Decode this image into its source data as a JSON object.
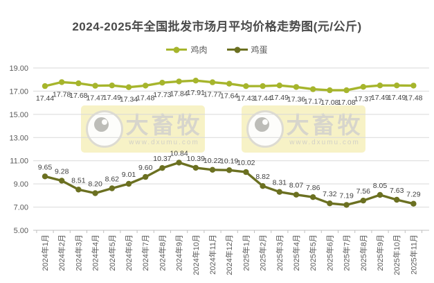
{
  "title": "2024-2025年全国批发市场月平均价格走势图(元/公斤)",
  "watermark": {
    "brand": "大畜牧",
    "url": "www.dxumu.com"
  },
  "colors": {
    "chicken": "#a6b52c",
    "egg": "#6b7021",
    "grid": "#d9d9d9",
    "axis": "#bfbfbf",
    "axis_text": "#595959",
    "data_label_text": "#404040",
    "title_text": "#4a4a4a",
    "watermark_bg": "#f7f2c6"
  },
  "chart_data": {
    "type": "line",
    "title": "2024-2025年全国批发市场月平均价格走势图(元/公斤)",
    "categories": [
      "2024年1月",
      "2024年2月",
      "2024年3月",
      "2024年4月",
      "2024年5月",
      "2024年6月",
      "2024年7月",
      "2024年8月",
      "2024年9月",
      "2024年10月",
      "2024年11月",
      "2024年12月",
      "2025年1月",
      "2025年2月",
      "2025年3月",
      "2025年4月",
      "2025年5月",
      "2025年6月",
      "2025年7月",
      "2025年8月",
      "2025年9月",
      "2025年10月",
      "2025年11月"
    ],
    "series": [
      {
        "name": "鸡肉",
        "color": "#a6b52c",
        "values": [
          17.44,
          17.78,
          17.68,
          17.47,
          17.49,
          17.34,
          17.48,
          17.73,
          17.84,
          17.91,
          17.77,
          17.64,
          17.43,
          17.44,
          17.49,
          17.36,
          17.17,
          17.08,
          17.08,
          17.37,
          17.49,
          17.49,
          17.48
        ]
      },
      {
        "name": "鸡蛋",
        "color": "#6b7021",
        "values": [
          9.65,
          9.28,
          8.51,
          8.2,
          8.62,
          9.01,
          9.6,
          10.37,
          10.84,
          10.39,
          10.22,
          10.19,
          10.02,
          8.82,
          8.31,
          8.07,
          7.86,
          7.32,
          7.19,
          7.56,
          8.05,
          7.63,
          7.29
        ]
      }
    ],
    "ylim": [
      5,
      19
    ],
    "yticks": [
      19,
      17,
      15,
      13,
      11,
      9,
      7,
      5
    ],
    "ytick_format": "2dp",
    "grid": true,
    "legend_position": "top",
    "data_labels": true,
    "x_label_rotation": -90
  }
}
